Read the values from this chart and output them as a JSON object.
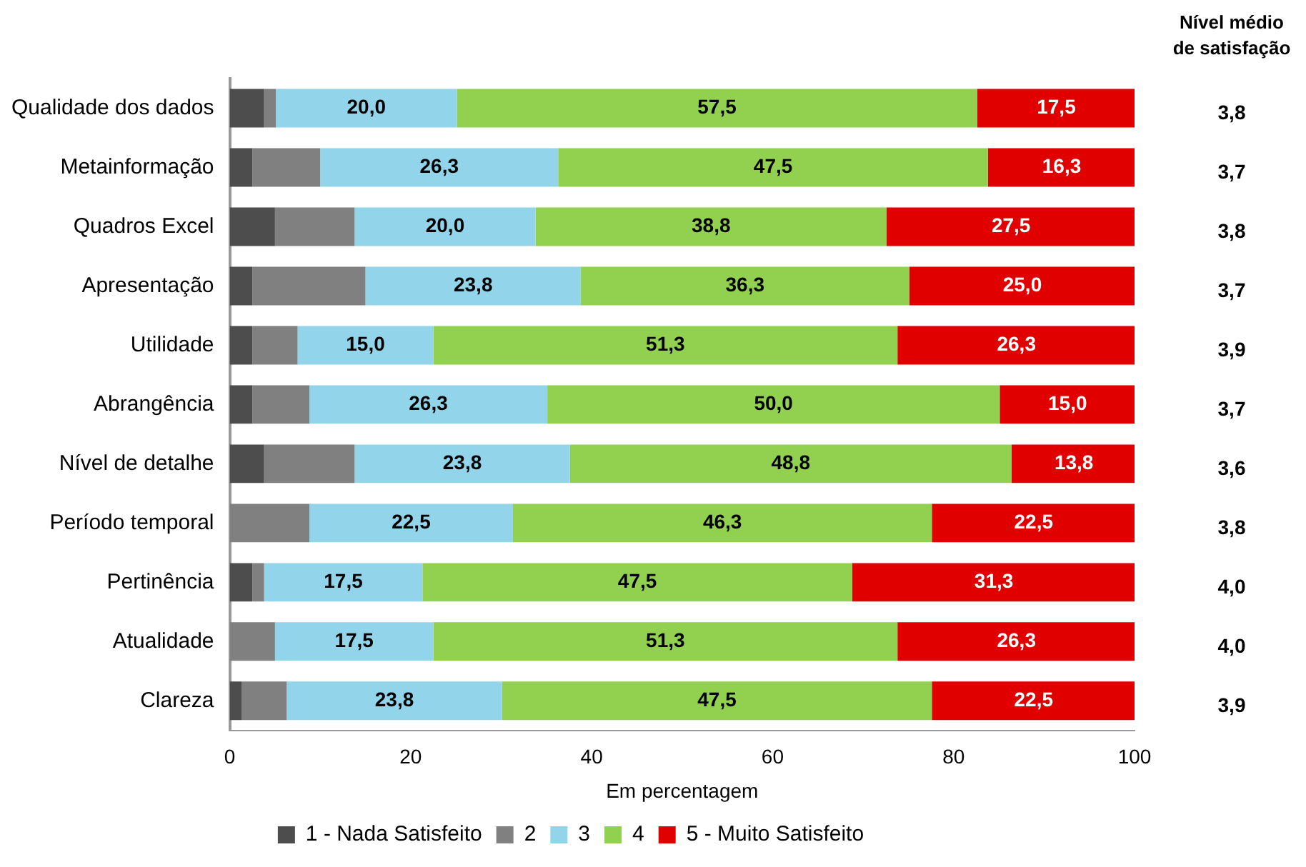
{
  "chart_data": {
    "type": "bar",
    "orientation": "horizontal",
    "stacked": true,
    "categories": [
      "Qualidade dos dados",
      "Metainformação",
      "Quadros Excel",
      "Apresentação",
      "Utilidade",
      "Abrangência",
      "Nível de detalhe",
      "Período temporal",
      "Pertinência",
      "Atualidade",
      "Clareza"
    ],
    "series": [
      {
        "name": "1 - Nada Satisfeito",
        "color": "#4d4d4d",
        "values": [
          3.8,
          2.5,
          5.0,
          2.5,
          2.5,
          2.5,
          3.8,
          0,
          2.5,
          0,
          1.3
        ]
      },
      {
        "name": "2",
        "color": "#808080",
        "values": [
          1.3,
          7.5,
          8.8,
          12.5,
          5.0,
          6.3,
          10.0,
          8.8,
          1.3,
          5.0,
          5.0
        ]
      },
      {
        "name": "3",
        "color": "#92d5ea",
        "values": [
          20.0,
          26.3,
          20.0,
          23.8,
          15.0,
          26.3,
          23.8,
          22.5,
          17.5,
          17.5,
          23.8
        ],
        "value_labels": [
          "20,0",
          "26,3",
          "20,0",
          "23,8",
          "15,0",
          "26,3",
          "23,8",
          "22,5",
          "17,5",
          "17,5",
          "23,8"
        ]
      },
      {
        "name": "4",
        "color": "#92d050",
        "values": [
          57.5,
          47.5,
          38.8,
          36.3,
          51.3,
          50.0,
          48.8,
          46.3,
          47.5,
          51.3,
          47.5
        ],
        "value_labels": [
          "57,5",
          "47,5",
          "38,8",
          "36,3",
          "51,3",
          "50,0",
          "48,8",
          "46,3",
          "47,5",
          "51,3",
          "47,5"
        ]
      },
      {
        "name": "5 - Muito Satisfeito",
        "color": "#e00000",
        "values": [
          17.5,
          16.3,
          27.5,
          25.0,
          26.3,
          15.0,
          13.8,
          22.5,
          31.3,
          26.3,
          22.5
        ],
        "value_labels": [
          "17,5",
          "16,3",
          "27,5",
          "25,0",
          "26,3",
          "15,0",
          "13,8",
          "22,5",
          "31,3",
          "26,3",
          "22,5"
        ]
      }
    ],
    "xlim": [
      0,
      100
    ],
    "xticks": [
      0,
      20,
      40,
      60,
      80,
      100
    ],
    "xlabel": "Em percentagem",
    "grid": false,
    "legend": "bottom",
    "annotations": [
      "Nível médio\nde satisfação",
      "3,8",
      "3,7",
      "3,8",
      "3,7",
      "3,9",
      "3,7",
      "3,6",
      "3,8",
      "4,0",
      "4,0",
      "3,9"
    ]
  }
}
